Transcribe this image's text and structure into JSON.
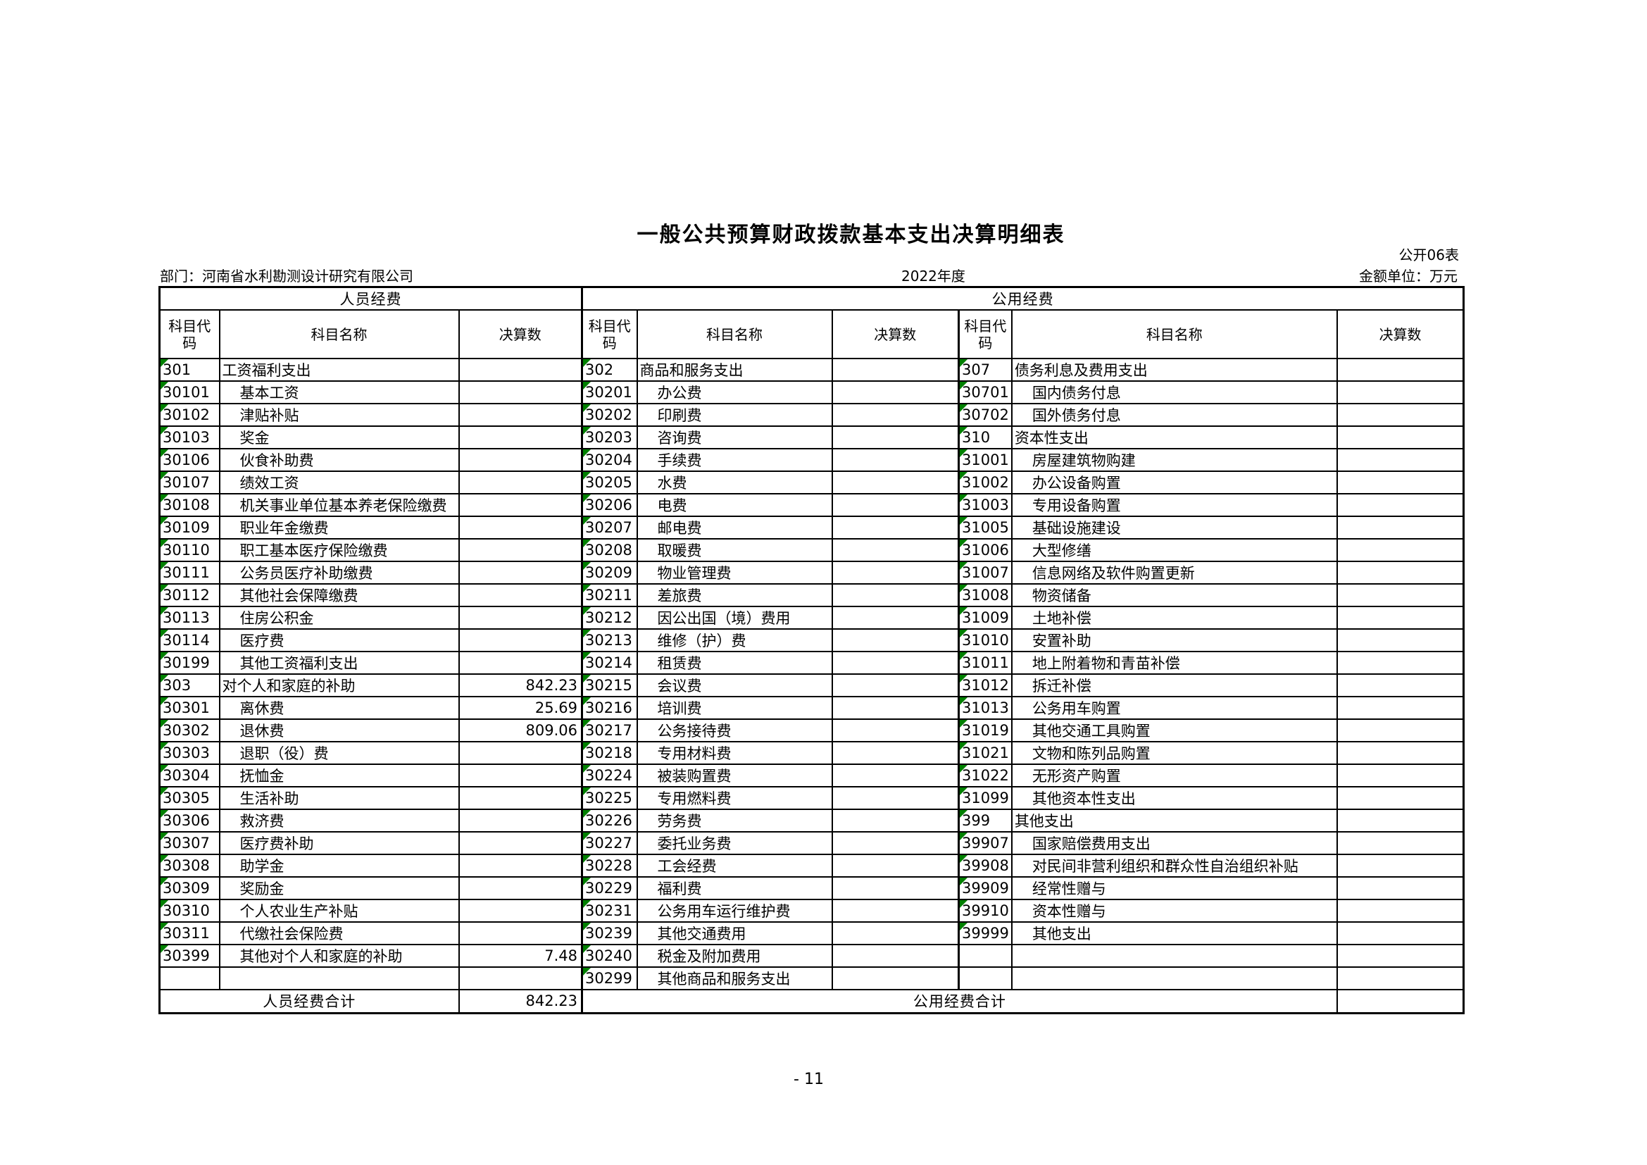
{
  "page": {
    "title": "一般公共预算财政拨款基本支出决算明细表",
    "sheet_code": "公开06表",
    "department_label": "部门：河南省水利勘测设计研究有限公司",
    "year": "2022年度",
    "amount_unit": "金额单位：万元",
    "page_number": "- 11"
  },
  "colors": {
    "flag_green": "#008000"
  },
  "table": {
    "group_headers": {
      "personnel": "人员经费",
      "public": "公用经费"
    },
    "column_headers": {
      "code": "科目代码",
      "name": "科目名称",
      "value": "决算数"
    },
    "row_count": 28,
    "personnel_total": {
      "label": "人员经费合计",
      "value": "842.23"
    },
    "public_total": {
      "label": "公用经费合计",
      "value": ""
    },
    "personnel_rows": [
      {
        "code": "301",
        "name": "工资福利支出",
        "value": "",
        "indent": 0
      },
      {
        "code": "30101",
        "name": "基本工资",
        "value": "",
        "indent": 1
      },
      {
        "code": "30102",
        "name": "津贴补贴",
        "value": "",
        "indent": 1
      },
      {
        "code": "30103",
        "name": "奖金",
        "value": "",
        "indent": 1
      },
      {
        "code": "30106",
        "name": "伙食补助费",
        "value": "",
        "indent": 1
      },
      {
        "code": "30107",
        "name": "绩效工资",
        "value": "",
        "indent": 1
      },
      {
        "code": "30108",
        "name": "机关事业单位基本养老保险缴费",
        "value": "",
        "indent": 1
      },
      {
        "code": "30109",
        "name": "职业年金缴费",
        "value": "",
        "indent": 1
      },
      {
        "code": "30110",
        "name": "职工基本医疗保险缴费",
        "value": "",
        "indent": 1
      },
      {
        "code": "30111",
        "name": "公务员医疗补助缴费",
        "value": "",
        "indent": 1
      },
      {
        "code": "30112",
        "name": "其他社会保障缴费",
        "value": "",
        "indent": 1
      },
      {
        "code": "30113",
        "name": "住房公积金",
        "value": "",
        "indent": 1
      },
      {
        "code": "30114",
        "name": "医疗费",
        "value": "",
        "indent": 1
      },
      {
        "code": "30199",
        "name": "其他工资福利支出",
        "value": "",
        "indent": 1
      },
      {
        "code": "303",
        "name": "对个人和家庭的补助",
        "value": "842.23",
        "indent": 0
      },
      {
        "code": "30301",
        "name": "离休费",
        "value": "25.69",
        "indent": 1
      },
      {
        "code": "30302",
        "name": "退休费",
        "value": "809.06",
        "indent": 1
      },
      {
        "code": "30303",
        "name": "退职（役）费",
        "value": "",
        "indent": 1
      },
      {
        "code": "30304",
        "name": "抚恤金",
        "value": "",
        "indent": 1
      },
      {
        "code": "30305",
        "name": "生活补助",
        "value": "",
        "indent": 1
      },
      {
        "code": "30306",
        "name": "救济费",
        "value": "",
        "indent": 1
      },
      {
        "code": "30307",
        "name": "医疗费补助",
        "value": "",
        "indent": 1
      },
      {
        "code": "30308",
        "name": "助学金",
        "value": "",
        "indent": 1
      },
      {
        "code": "30309",
        "name": "奖励金",
        "value": "",
        "indent": 1
      },
      {
        "code": "30310",
        "name": "个人农业生产补贴",
        "value": "",
        "indent": 1
      },
      {
        "code": "30311",
        "name": "代缴社会保险费",
        "value": "",
        "indent": 1
      },
      {
        "code": "30399",
        "name": "其他对个人和家庭的补助",
        "value": "7.48",
        "indent": 1
      },
      {
        "code": "",
        "name": "",
        "value": "",
        "indent": 0
      }
    ],
    "public_rows_1": [
      {
        "code": "302",
        "name": "商品和服务支出",
        "value": "",
        "indent": 0
      },
      {
        "code": "30201",
        "name": "办公费",
        "value": "",
        "indent": 1
      },
      {
        "code": "30202",
        "name": "印刷费",
        "value": "",
        "indent": 1
      },
      {
        "code": "30203",
        "name": "咨询费",
        "value": "",
        "indent": 1
      },
      {
        "code": "30204",
        "name": "手续费",
        "value": "",
        "indent": 1
      },
      {
        "code": "30205",
        "name": "水费",
        "value": "",
        "indent": 1
      },
      {
        "code": "30206",
        "name": "电费",
        "value": "",
        "indent": 1
      },
      {
        "code": "30207",
        "name": "邮电费",
        "value": "",
        "indent": 1
      },
      {
        "code": "30208",
        "name": "取暖费",
        "value": "",
        "indent": 1
      },
      {
        "code": "30209",
        "name": "物业管理费",
        "value": "",
        "indent": 1
      },
      {
        "code": "30211",
        "name": "差旅费",
        "value": "",
        "indent": 1
      },
      {
        "code": "30212",
        "name": "因公出国（境）费用",
        "value": "",
        "indent": 1
      },
      {
        "code": "30213",
        "name": "维修（护）费",
        "value": "",
        "indent": 1
      },
      {
        "code": "30214",
        "name": "租赁费",
        "value": "",
        "indent": 1
      },
      {
        "code": "30215",
        "name": "会议费",
        "value": "",
        "indent": 1
      },
      {
        "code": "30216",
        "name": "培训费",
        "value": "",
        "indent": 1
      },
      {
        "code": "30217",
        "name": "公务接待费",
        "value": "",
        "indent": 1
      },
      {
        "code": "30218",
        "name": "专用材料费",
        "value": "",
        "indent": 1
      },
      {
        "code": "30224",
        "name": "被装购置费",
        "value": "",
        "indent": 1
      },
      {
        "code": "30225",
        "name": "专用燃料费",
        "value": "",
        "indent": 1
      },
      {
        "code": "30226",
        "name": "劳务费",
        "value": "",
        "indent": 1
      },
      {
        "code": "30227",
        "name": "委托业务费",
        "value": "",
        "indent": 1
      },
      {
        "code": "30228",
        "name": "工会经费",
        "value": "",
        "indent": 1
      },
      {
        "code": "30229",
        "name": "福利费",
        "value": "",
        "indent": 1
      },
      {
        "code": "30231",
        "name": "公务用车运行维护费",
        "value": "",
        "indent": 1
      },
      {
        "code": "30239",
        "name": "其他交通费用",
        "value": "",
        "indent": 1
      },
      {
        "code": "30240",
        "name": "税金及附加费用",
        "value": "",
        "indent": 1
      },
      {
        "code": "30299",
        "name": "其他商品和服务支出",
        "value": "",
        "indent": 1
      }
    ],
    "public_rows_2": [
      {
        "code": "307",
        "name": "债务利息及费用支出",
        "value": "",
        "indent": 0
      },
      {
        "code": "30701",
        "name": "国内债务付息",
        "value": "",
        "indent": 1
      },
      {
        "code": "30702",
        "name": "国外债务付息",
        "value": "",
        "indent": 1
      },
      {
        "code": "310",
        "name": "资本性支出",
        "value": "",
        "indent": 0
      },
      {
        "code": "31001",
        "name": "房屋建筑物购建",
        "value": "",
        "indent": 1
      },
      {
        "code": "31002",
        "name": "办公设备购置",
        "value": "",
        "indent": 1
      },
      {
        "code": "31003",
        "name": "专用设备购置",
        "value": "",
        "indent": 1
      },
      {
        "code": "31005",
        "name": "基础设施建设",
        "value": "",
        "indent": 1
      },
      {
        "code": "31006",
        "name": "大型修缮",
        "value": "",
        "indent": 1
      },
      {
        "code": "31007",
        "name": "信息网络及软件购置更新",
        "value": "",
        "indent": 1
      },
      {
        "code": "31008",
        "name": "物资储备",
        "value": "",
        "indent": 1
      },
      {
        "code": "31009",
        "name": "土地补偿",
        "value": "",
        "indent": 1
      },
      {
        "code": "31010",
        "name": "安置补助",
        "value": "",
        "indent": 1
      },
      {
        "code": "31011",
        "name": "地上附着物和青苗补偿",
        "value": "",
        "indent": 1
      },
      {
        "code": "31012",
        "name": "拆迁补偿",
        "value": "",
        "indent": 1
      },
      {
        "code": "31013",
        "name": "公务用车购置",
        "value": "",
        "indent": 1
      },
      {
        "code": "31019",
        "name": "其他交通工具购置",
        "value": "",
        "indent": 1
      },
      {
        "code": "31021",
        "name": "文物和陈列品购置",
        "value": "",
        "indent": 1
      },
      {
        "code": "31022",
        "name": "无形资产购置",
        "value": "",
        "indent": 1
      },
      {
        "code": "31099",
        "name": "其他资本性支出",
        "value": "",
        "indent": 1
      },
      {
        "code": "399",
        "name": "其他支出",
        "value": "",
        "indent": 0
      },
      {
        "code": "39907",
        "name": "国家赔偿费用支出",
        "value": "",
        "indent": 1
      },
      {
        "code": "39908",
        "name": "对民间非营利组织和群众性自治组织补贴",
        "value": "",
        "indent": 1
      },
      {
        "code": "39909",
        "name": "经常性赠与",
        "value": "",
        "indent": 1
      },
      {
        "code": "39910",
        "name": "资本性赠与",
        "value": "",
        "indent": 1
      },
      {
        "code": "39999",
        "name": "其他支出",
        "value": "",
        "indent": 1
      },
      {
        "code": "",
        "name": "",
        "value": "",
        "indent": 0
      },
      {
        "code": "",
        "name": "",
        "value": "",
        "indent": 0
      }
    ]
  }
}
